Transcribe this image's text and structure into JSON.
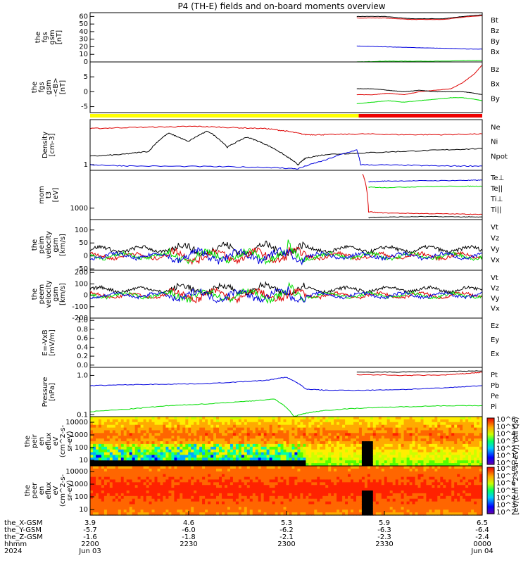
{
  "title": "P4 (TH-E) fields and on-board moments overview",
  "colors": {
    "black": "#000000",
    "red": "#dd0000",
    "green": "#00dd00",
    "blue": "#0000dd",
    "yellow": "#ffff00",
    "flag_red": "#ee0000"
  },
  "chart_data": [
    {
      "type": "line",
      "id": "fgs_gsm_full",
      "ylabel": [
        "the",
        "fgs",
        "gsm",
        "[nT]"
      ],
      "ylim": [
        0,
        65
      ],
      "yticks": [
        "0",
        "10",
        "20",
        "30",
        "40",
        "50",
        "60"
      ],
      "series": [
        {
          "name": "Bt",
          "color": "#000000",
          "x": [
            0.68,
            0.75,
            0.82,
            0.9,
            0.97,
            1.0
          ],
          "y": [
            60,
            60,
            57,
            57,
            61,
            62
          ]
        },
        {
          "name": "Bz",
          "color": "#dd0000",
          "x": [
            0.68,
            0.75,
            0.82,
            0.9,
            0.97,
            1.0
          ],
          "y": [
            58,
            58,
            56,
            56,
            60,
            61
          ]
        },
        {
          "name": "By",
          "color": "#00dd00",
          "x": [
            0.68,
            0.75,
            0.82,
            0.9,
            0.97,
            1.0
          ],
          "y": [
            0,
            1,
            1,
            1,
            2,
            2
          ]
        },
        {
          "name": "Bx",
          "color": "#0000dd",
          "x": [
            0.68,
            0.75,
            0.82,
            0.9,
            0.97,
            1.0
          ],
          "y": [
            21,
            20,
            19,
            18,
            17,
            17
          ]
        }
      ]
    },
    {
      "type": "line",
      "id": "fgs_gsm_detrended",
      "ylabel": [
        "the",
        "fgs",
        "gsm",
        "-<B>",
        "[nT]"
      ],
      "ylim": [
        -7,
        10
      ],
      "yticks": [
        "-5",
        "0",
        "5"
      ],
      "series": [
        {
          "name": "Bz",
          "color": "#dd0000",
          "x": [
            0.68,
            0.72,
            0.76,
            0.8,
            0.84,
            0.88,
            0.92,
            0.95,
            0.98,
            1.0
          ],
          "y": [
            -1,
            -1,
            -0.5,
            -1,
            0,
            0.5,
            1,
            3,
            6,
            9
          ]
        },
        {
          "name": "Bx",
          "color": "#000000",
          "x": [
            0.68,
            0.72,
            0.76,
            0.8,
            0.84,
            0.88,
            0.92,
            0.95,
            0.98,
            1.0
          ],
          "y": [
            1,
            1,
            0.5,
            0,
            0.5,
            0,
            0,
            0,
            -0.5,
            -1
          ]
        },
        {
          "name": "By",
          "color": "#00dd00",
          "x": [
            0.68,
            0.72,
            0.76,
            0.8,
            0.84,
            0.88,
            0.92,
            0.95,
            0.98,
            1.0
          ],
          "y": [
            -4,
            -3.5,
            -3,
            -3.5,
            -3,
            -2.5,
            -2,
            -2,
            -2.5,
            -3
          ]
        }
      ]
    },
    {
      "type": "line",
      "id": "density",
      "ylog": true,
      "ylabel": [
        "Density",
        "[cm-3]"
      ],
      "ylim": [
        0.8,
        6
      ],
      "yticks": [
        "1"
      ],
      "series": [
        {
          "name": "Ne",
          "color": "#dd0000",
          "x": [
            0,
            0.1,
            0.2,
            0.27,
            0.35,
            0.45,
            0.5,
            0.55,
            0.6,
            0.7,
            0.8,
            0.9,
            1.0
          ],
          "y": [
            4.2,
            4.4,
            4.5,
            4.6,
            4.4,
            4.2,
            3.8,
            3.3,
            3.3,
            3.4,
            3.3,
            3.3,
            3.4
          ]
        },
        {
          "name": "Ni",
          "color": "#000000",
          "x": [
            0,
            0.08,
            0.15,
            0.2,
            0.25,
            0.3,
            0.35,
            0.4,
            0.45,
            0.5,
            0.53,
            0.55,
            0.6,
            0.7,
            0.8,
            0.9,
            1.0
          ],
          "y": [
            1.4,
            1.5,
            1.7,
            3.5,
            2.5,
            3.8,
            2.0,
            3.0,
            2.2,
            1.4,
            1.0,
            1.3,
            1.5,
            1.6,
            1.7,
            1.8,
            1.9
          ]
        },
        {
          "name": "Npot",
          "color": "#0000dd",
          "x": [
            0,
            0.1,
            0.3,
            0.45,
            0.53,
            0.6,
            0.68,
            0.69,
            0.8,
            0.9,
            1.0
          ],
          "y": [
            1.0,
            0.95,
            0.93,
            0.9,
            0.85,
            1.2,
            1.8,
            1.0,
            0.98,
            0.95,
            0.95
          ]
        }
      ]
    },
    {
      "type": "line",
      "id": "moments_temperature",
      "ylog": true,
      "ylabel": [
        "mom",
        "t3",
        "[eV]"
      ],
      "ylim": [
        500,
        10000
      ],
      "yticks": [
        "1000"
      ],
      "series": [
        {
          "name": "Te⊥",
          "color": "#dd0000",
          "x": [
            0.695,
            0.71,
            0.75,
            0.85,
            0.95,
            1.0
          ],
          "y": [
            8000,
            800,
            750,
            720,
            700,
            680
          ]
        },
        {
          "name": "Te||",
          "color": "#000000",
          "x": [
            0.71,
            0.75,
            0.85,
            0.95,
            1.0
          ],
          "y": [
            560,
            580,
            600,
            590,
            580
          ]
        },
        {
          "name": "Ti⊥",
          "color": "#0000dd",
          "x": [
            0.71,
            0.75,
            0.85,
            0.95,
            1.0
          ],
          "y": [
            5000,
            5200,
            5300,
            5400,
            5500
          ]
        },
        {
          "name": "Ti||",
          "color": "#00dd00",
          "x": [
            0.71,
            0.75,
            0.85,
            0.95,
            1.0
          ],
          "y": [
            3600,
            3500,
            3700,
            3800,
            3800
          ]
        }
      ]
    },
    {
      "type": "line",
      "id": "peim_velocity",
      "ylabel": [
        "the",
        "peim",
        "velocity",
        "gsm",
        "[km/s]"
      ],
      "ylim": [
        -55,
        140
      ],
      "yticks": [
        "-50",
        "0",
        "50",
        "100"
      ],
      "series": [
        {
          "name": "Vt",
          "color": "#000000"
        },
        {
          "name": "Vz",
          "color": "#dd0000"
        },
        {
          "name": "Vy",
          "color": "#00dd00"
        },
        {
          "name": "Vx",
          "color": "#0000dd"
        }
      ]
    },
    {
      "type": "line",
      "id": "peem_velocity",
      "ylabel": [
        "the",
        "peem",
        "velocity",
        "gsm",
        "[km/s]"
      ],
      "ylim": [
        -200,
        220
      ],
      "yticks": [
        "-200",
        "-100",
        "0",
        "100",
        "200"
      ],
      "series": [
        {
          "name": "Vt",
          "color": "#000000"
        },
        {
          "name": "Vz",
          "color": "#dd0000"
        },
        {
          "name": "Vy",
          "color": "#00dd00"
        },
        {
          "name": "Vx",
          "color": "#0000dd"
        }
      ]
    },
    {
      "type": "line",
      "id": "efield",
      "ylabel": [
        "E=-VxB",
        "[mV/m]"
      ],
      "ylim": [
        -0.05,
        1.05
      ],
      "yticks": [
        "0.0",
        "0.2",
        "0.4",
        "0.6",
        "0.8",
        "1.0"
      ],
      "series": [
        {
          "name": "Ez",
          "color": "#dd0000"
        },
        {
          "name": "Ey",
          "color": "#00dd00"
        },
        {
          "name": "Ex",
          "color": "#0000dd"
        }
      ]
    },
    {
      "type": "line",
      "id": "pressure",
      "ylog": true,
      "ylabel": [
        "Pressure",
        "[nPa]"
      ],
      "ylim": [
        0.09,
        1.6
      ],
      "yticks": [
        "0.1",
        "1.0"
      ],
      "series": [
        {
          "name": "Pt",
          "color": "#000000",
          "x": [
            0.68,
            0.8,
            0.9,
            1.0
          ],
          "y": [
            1.2,
            1.22,
            1.25,
            1.3
          ]
        },
        {
          "name": "Pb",
          "color": "#dd0000",
          "x": [
            0.68,
            0.8,
            0.9,
            0.95,
            1.0
          ],
          "y": [
            1.05,
            1.0,
            1.02,
            1.1,
            1.2
          ]
        },
        {
          "name": "Pe",
          "color": "#00dd00",
          "x": [
            0,
            0.1,
            0.2,
            0.3,
            0.4,
            0.47,
            0.52,
            0.55,
            0.6,
            0.7,
            0.8,
            0.9,
            1.0
          ],
          "y": [
            0.12,
            0.14,
            0.17,
            0.19,
            0.22,
            0.25,
            0.09,
            0.11,
            0.13,
            0.15,
            0.16,
            0.17,
            0.17
          ]
        },
        {
          "name": "Pi",
          "color": "#0000dd",
          "x": [
            0,
            0.1,
            0.2,
            0.3,
            0.4,
            0.45,
            0.5,
            0.55,
            0.6,
            0.7,
            0.8,
            0.9,
            1.0
          ],
          "y": [
            0.55,
            0.58,
            0.6,
            0.62,
            0.7,
            0.75,
            0.9,
            0.45,
            0.42,
            0.42,
            0.44,
            0.48,
            0.55
          ]
        }
      ]
    },
    {
      "type": "heatmap",
      "id": "peir_en_eflux",
      "ylabel": [
        "the",
        "peir",
        "en",
        "eflux",
        "eV",
        "(cm^2-s-",
        "sr-eV)"
      ],
      "yticks": [
        "10",
        "100",
        "1000",
        "10000"
      ]
    },
    {
      "type": "heatmap",
      "id": "peer_en_eflux",
      "ylabel": [
        "the",
        "peer",
        "en",
        "eflux",
        "eV",
        "(cm^2-s-",
        "sr-eV)"
      ],
      "yticks": [
        "10",
        "100",
        "1000",
        "10000"
      ]
    }
  ],
  "colorbar": {
    "label": "[eV/(cm^2-s-sr-eV)] (All Qs)",
    "ticks_top": [
      "10^6",
      "10^5",
      "10^4",
      "10^3",
      "10^2",
      "10^1",
      "10^0"
    ],
    "ticks_bottom": [
      "10^8",
      "10^7",
      "10^6",
      "10^5",
      "10^4",
      "10^3",
      "10^2"
    ]
  },
  "axis_rows": [
    {
      "label": "the_X-GSM",
      "values": [
        "3.9",
        "4.6",
        "5.3",
        "5.9",
        "6.5"
      ]
    },
    {
      "label": "the_Y-GSM",
      "values": [
        "-5.7",
        "-6.0",
        "-6.2",
        "-6.3",
        "-6.4"
      ]
    },
    {
      "label": "the_Z-GSM",
      "values": [
        "-1.6",
        "-1.8",
        "-2.1",
        "-2.3",
        "-2.4"
      ]
    },
    {
      "label": "hhmm",
      "values": [
        "2200",
        "2230",
        "2300",
        "2330",
        "0000"
      ]
    },
    {
      "label": "2024",
      "values": [
        "Jun 03",
        "",
        "",
        "",
        "Jun 04"
      ]
    }
  ]
}
